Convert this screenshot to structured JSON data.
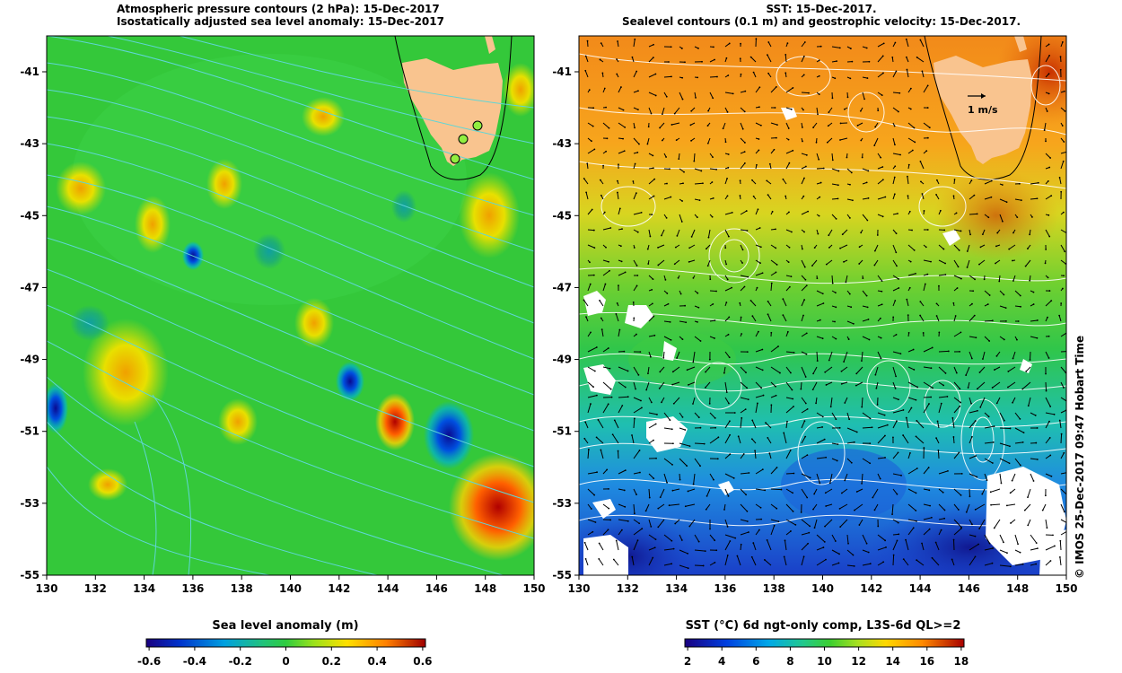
{
  "left_panel": {
    "title_line1": "Atmospheric pressure contours (2 hPa): 15-Dec-2017",
    "title_line2": "Isostatically adjusted sea level anomaly: 15-Dec-2017",
    "lat_ticks": [
      "-41",
      "-43",
      "-45",
      "-47",
      "-49",
      "-51",
      "-53",
      "-55"
    ],
    "lon_ticks": [
      "130",
      "132",
      "134",
      "136",
      "138",
      "140",
      "142",
      "144",
      "146",
      "148",
      "150"
    ],
    "colorbar_title": "Sea level anomaly (m)",
    "colorbar_ticks": [
      "-0.6",
      "-0.4",
      "-0.2",
      "0",
      "0.2",
      "0.4",
      "0.6"
    ],
    "colors": {
      "land": "#f9c48f",
      "contour": "#5fd6d6"
    }
  },
  "right_panel": {
    "title_line1": "SST: 15-Dec-2017.",
    "title_line2": "Sealevel contours (0.1 m) and geostrophic velocity: 15-Dec-2017.",
    "lat_ticks": [
      "-41",
      "-43",
      "-45",
      "-47",
      "-49",
      "-51",
      "-53",
      "-55"
    ],
    "lon_ticks": [
      "130",
      "132",
      "134",
      "136",
      "138",
      "140",
      "142",
      "144",
      "146",
      "148",
      "150"
    ],
    "scale_label": "1 m/s",
    "colorbar_title": "SST (°C) 6d ngt-only comp, L3S-6d QL>=2",
    "colorbar_ticks": [
      "2",
      "4",
      "6",
      "8",
      "10",
      "12",
      "14",
      "16",
      "18"
    ],
    "credit": "© IMOS 25-Dec-2017 09:47 Hobart Time",
    "colors": {
      "land": "#f9c48f",
      "contour": "#ffffff"
    }
  }
}
